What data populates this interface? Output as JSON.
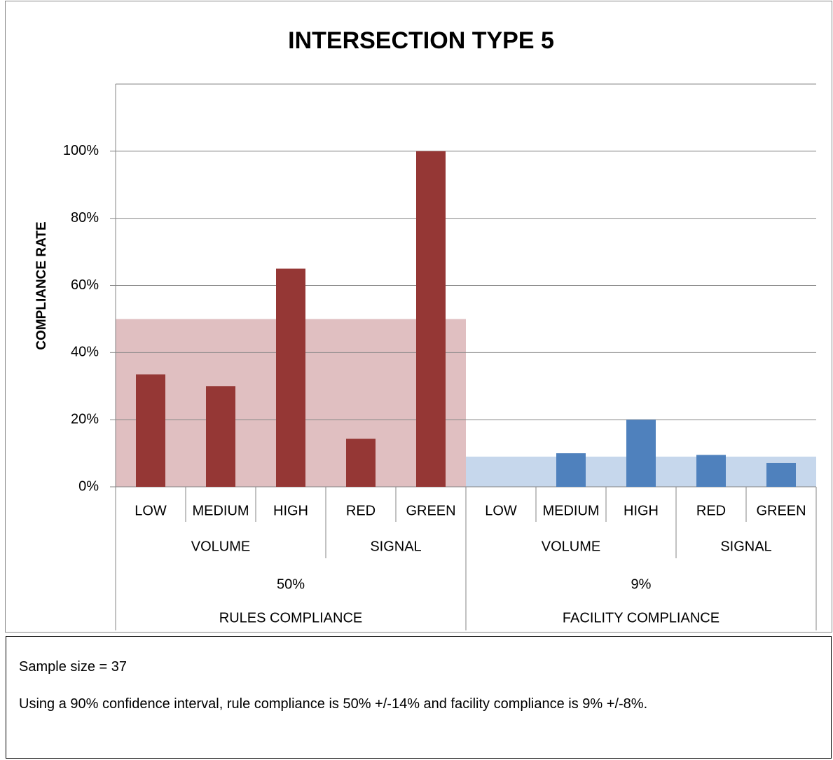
{
  "chart_data": {
    "type": "grouped-bar",
    "title": "INTERSECTION TYPE 5",
    "y_label": "COMPLIANCE RATE",
    "ylim": [
      0,
      120
    ],
    "yticks": [
      {
        "value": 0,
        "label": "0%"
      },
      {
        "value": 20,
        "label": "20%"
      },
      {
        "value": 40,
        "label": "40%"
      },
      {
        "value": 60,
        "label": "60%"
      },
      {
        "value": 80,
        "label": "80%"
      },
      {
        "value": 100,
        "label": "100%"
      }
    ],
    "grid": true,
    "groups": [
      {
        "name": "RULES COMPLIANCE",
        "value": 50,
        "value_label": "50%",
        "color": "#953735",
        "band_color": "#e0bfc1",
        "subgroups": [
          {
            "name": "VOLUME",
            "categories": [
              "LOW",
              "MEDIUM",
              "HIGH"
            ],
            "values": [
              33.5,
              30,
              65
            ]
          },
          {
            "name": "SIGNAL",
            "categories": [
              "RED",
              "GREEN"
            ],
            "values": [
              14.3,
              100
            ]
          }
        ]
      },
      {
        "name": "FACILITY COMPLIANCE",
        "value": 9,
        "value_label": "9%",
        "color": "#4f81bd",
        "band_color": "#c6d7ec",
        "subgroups": [
          {
            "name": "VOLUME",
            "categories": [
              "LOW",
              "MEDIUM",
              "HIGH"
            ],
            "values": [
              0,
              10,
              20
            ]
          },
          {
            "name": "SIGNAL",
            "categories": [
              "RED",
              "GREEN"
            ],
            "values": [
              9.5,
              7.1
            ]
          }
        ]
      }
    ]
  },
  "notes": [
    "Sample size = 37",
    "Using a 90% confidence interval, rule compliance is 50% +/-14% and facility compliance is 9% +/-8%."
  ]
}
